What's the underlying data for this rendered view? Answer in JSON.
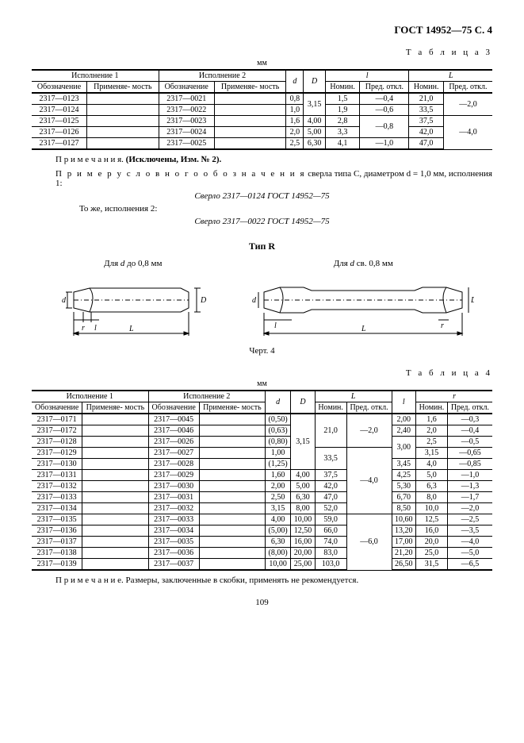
{
  "header": {
    "standard": "ГОСТ 14952—75 С. 4"
  },
  "table3": {
    "label": "Т а б л и ц а  3",
    "unit": "мм",
    "head": {
      "isp1": "Исполнение 1",
      "isp2": "Исполнение 2",
      "oboz": "Обозначение",
      "prim": "Применяе-\nмость",
      "d": "d",
      "D": "D",
      "l": "l",
      "L": "L",
      "nom": "Номин.",
      "pred": "Пред.\nоткл."
    },
    "rows": [
      {
        "o1": "2317—0123",
        "p1": "",
        "o2": "2317—0021",
        "p2": "",
        "d": "0,8",
        "D": "3,15",
        "ln": "1,5",
        "lp": "—0,4",
        "Ln": "21,0",
        "Lp": "—2,0"
      },
      {
        "o1": "2317—0124",
        "p1": "",
        "o2": "2317—0022",
        "p2": "",
        "d": "1,0",
        "D": "",
        "ln": "1,9",
        "lp": "—0,6",
        "Ln": "33,5",
        "Lp": ""
      },
      {
        "o1": "2317—0125",
        "p1": "",
        "o2": "2317—0023",
        "p2": "",
        "d": "1,6",
        "D": "4,00",
        "ln": "2,8",
        "lp": "—0,8",
        "Ln": "37,5",
        "Lp": "—4,0"
      },
      {
        "o1": "2317—0126",
        "p1": "",
        "o2": "2317—0024",
        "p2": "",
        "d": "2,0",
        "D": "5,00",
        "ln": "3,3",
        "lp": "",
        "Ln": "42,0",
        "Lp": ""
      },
      {
        "o1": "2317—0127",
        "p1": "",
        "o2": "2317—0025",
        "p2": "",
        "d": "2,5",
        "D": "6,30",
        "ln": "4,1",
        "lp": "—1,0",
        "Ln": "47,0",
        "Lp": ""
      }
    ]
  },
  "notes": {
    "n1_lead": "П р и м е ч а н и я.",
    "n1_bold": " (Исключены, Изм. № 2).",
    "example_lead": "П р и м е р   у с л о в н о г о   о б о з н а ч е н и я",
    "example_tail": " сверла типа С, диаметром d = 1,0 мм, исполнения 1:",
    "drill1": "Сверло 2317—0124 ГОСТ 14952—75",
    "same2": "То же, исполнения 2:",
    "drill2": "Сверло 2317—0022 ГОСТ 14952—75"
  },
  "typeR": {
    "heading": "Тип R",
    "left_label": "Для d до 0,8 мм",
    "right_label": "Для d св. 0,8 мм",
    "caption": "Черт. 4"
  },
  "table4": {
    "label": "Т а б л и ц а  4",
    "unit": "мм",
    "head": {
      "isp1": "Исполнение 1",
      "isp2": "Исполнение 2",
      "oboz": "Обозначение",
      "prim": "Применяе-\nмость",
      "d": "d",
      "D": "D",
      "L": "L",
      "l": "l",
      "r": "r",
      "nom": "Номин.",
      "pred": "Пред.\nоткл."
    },
    "rows": [
      {
        "o1": "2317—0171",
        "o2": "2317—0045",
        "d": "(0,50)",
        "D": "3,15",
        "Ln": "21,0",
        "Lp": "—2,0",
        "l": "2,00",
        "rn": "1,6",
        "rp": "—0,3"
      },
      {
        "o1": "2317—0172",
        "o2": "2317—0046",
        "d": "(0,63)",
        "D": "",
        "Ln": "",
        "Lp": "",
        "l": "2,40",
        "rn": "2,0",
        "rp": "—0,4"
      },
      {
        "o1": "2317—0128",
        "o2": "2317—0026",
        "d": "(0,80)",
        "D": "",
        "Ln": "",
        "Lp": "",
        "l": "3,00",
        "rn": "2,5",
        "rp": "—0,5"
      },
      {
        "o1": "2317—0129",
        "o2": "2317—0027",
        "d": "1,00",
        "D": "",
        "Ln": "33,5",
        "Lp": "",
        "l": "",
        "rn": "3,15",
        "rp": "—0,65"
      },
      {
        "o1": "2317—0130",
        "o2": "2317—0028",
        "d": "(1,25)",
        "D": "",
        "Ln": "",
        "Lp": "",
        "l": "3,45",
        "rn": "4,0",
        "rp": "—0,85"
      },
      {
        "o1": "2317—0131",
        "o2": "2317—0029",
        "d": "1,60",
        "D": "4,00",
        "Ln": "37,5",
        "Lp": "—4,0",
        "l": "4,25",
        "rn": "5,0",
        "rp": "—1,0"
      },
      {
        "o1": "2317—0132",
        "o2": "2317—0030",
        "d": "2,00",
        "D": "5,00",
        "Ln": "42,0",
        "Lp": "",
        "l": "5,30",
        "rn": "6,3",
        "rp": "—1,3"
      },
      {
        "o1": "2317—0133",
        "o2": "2317—0031",
        "d": "2,50",
        "D": "6,30",
        "Ln": "47,0",
        "Lp": "",
        "l": "6,70",
        "rn": "8,0",
        "rp": "—1,7"
      },
      {
        "o1": "2317—0134",
        "o2": "2317—0032",
        "d": "3,15",
        "D": "8,00",
        "Ln": "52,0",
        "Lp": "",
        "l": "8,50",
        "rn": "10,0",
        "rp": "—2,0"
      },
      {
        "o1": "2317—0135",
        "o2": "2317—0033",
        "d": "4,00",
        "D": "10,00",
        "Ln": "59,0",
        "Lp": "—6,0",
        "l": "10,60",
        "rn": "12,5",
        "rp": "—2,5"
      },
      {
        "o1": "2317—0136",
        "o2": "2317—0034",
        "d": "(5,00)",
        "D": "12,50",
        "Ln": "66,0",
        "Lp": "",
        "l": "13,20",
        "rn": "16,0",
        "rp": "—3,5"
      },
      {
        "o1": "2317—0137",
        "o2": "2317—0035",
        "d": "6,30",
        "D": "16,00",
        "Ln": "74,0",
        "Lp": "",
        "l": "17,00",
        "rn": "20,0",
        "rp": "—4,0"
      },
      {
        "o1": "2317—0138",
        "o2": "2317—0036",
        "d": "(8,00)",
        "D": "20,00",
        "Ln": "83,0",
        "Lp": "",
        "l": "21,20",
        "rn": "25,0",
        "rp": "—5,0"
      },
      {
        "o1": "2317—0139",
        "o2": "2317—0037",
        "d": "10,00",
        "D": "25,00",
        "Ln": "103,0",
        "Lp": "",
        "l": "26,50",
        "rn": "31,5",
        "rp": "—6,5"
      }
    ]
  },
  "footnote": "П р и м е ч а н и е. Размеры, заключенные в скобки, применять не рекомендуется.",
  "page": "109",
  "style": {
    "stroke": "#000000",
    "fill": "#ffffff",
    "thin": 0.8,
    "med": 1.2
  }
}
